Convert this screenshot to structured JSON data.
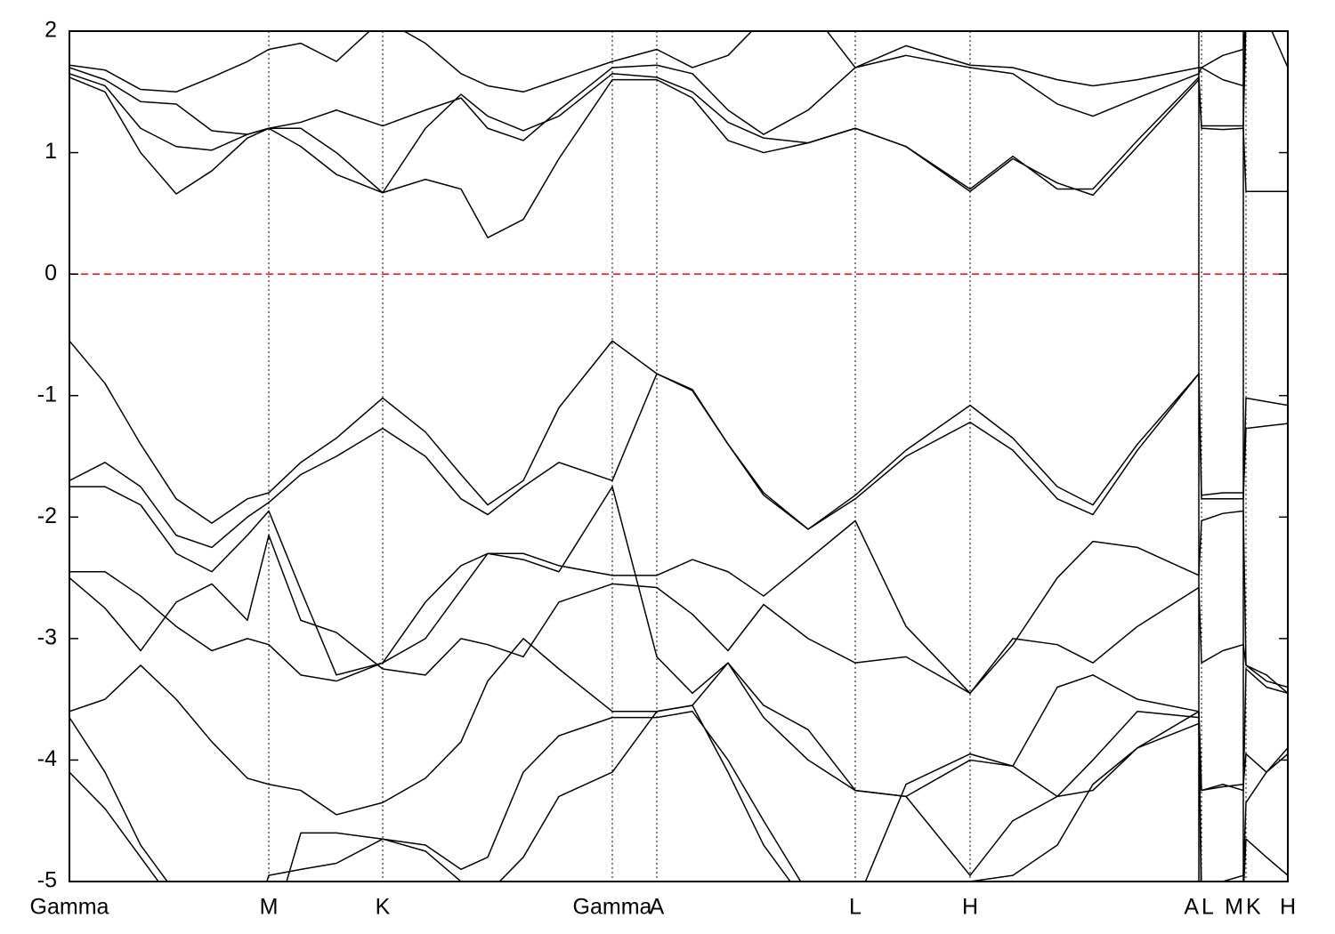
{
  "chart_data": {
    "type": "line",
    "x": [
      0,
      40,
      80,
      120,
      160,
      200,
      224,
      260,
      300,
      352,
      400,
      440,
      470,
      510,
      550,
      610,
      660,
      700,
      740,
      780,
      830,
      883,
      940,
      1012,
      1060,
      1110,
      1150,
      1200,
      1269,
      1272,
      1296,
      1319,
      1322,
      1345,
      1369
    ],
    "xlim": [
      0,
      1369
    ],
    "xticks": [
      {
        "value": 0,
        "label": "Gamma"
      },
      {
        "value": 224,
        "label": "M"
      },
      {
        "value": 352,
        "label": "K"
      },
      {
        "value": 610,
        "label": "Gamma"
      },
      {
        "value": 660,
        "label": "A"
      },
      {
        "value": 883,
        "label": "L"
      },
      {
        "value": 1012,
        "label": "H"
      },
      {
        "value": 1269,
        "label": "A"
      },
      {
        "value": 1272,
        "label": "L"
      },
      {
        "value": 1319,
        "label": "M"
      },
      {
        "value": 1322,
        "label": "K"
      },
      {
        "value": 1369,
        "label": "H"
      }
    ],
    "ylim": [
      -5,
      2
    ],
    "yticks": [
      -5,
      -4,
      -3,
      -2,
      -1,
      0,
      1,
      2
    ],
    "xgrid": true,
    "hline": {
      "value": 0,
      "color": "#ff0000",
      "dashed": true
    },
    "series": [
      {
        "color": "#000000",
        "values": [
          1.62,
          1.5,
          1.0,
          0.66,
          0.85,
          1.12,
          1.2,
          1.05,
          0.82,
          0.67,
          0.78,
          0.7,
          0.3,
          0.45,
          0.95,
          1.6,
          1.6,
          1.45,
          1.1,
          1.0,
          1.08,
          1.2,
          1.05,
          0.68,
          0.95,
          0.75,
          0.65,
          1.05,
          1.6,
          1.2,
          1.19,
          1.2,
          0.68,
          0.68,
          0.68
        ]
      },
      {
        "color": "#000000",
        "values": [
          1.65,
          1.55,
          1.2,
          1.05,
          1.02,
          1.15,
          1.2,
          1.2,
          1.0,
          0.67,
          1.2,
          1.48,
          1.3,
          1.18,
          1.3,
          1.65,
          1.62,
          1.5,
          1.25,
          1.12,
          1.08,
          1.2,
          1.05,
          0.7,
          0.97,
          0.7,
          0.7,
          1.1,
          1.62,
          1.22,
          1.22,
          1.22,
          2.1,
          2.1,
          2.1
        ]
      },
      {
        "color": "#000000",
        "values": [
          1.7,
          1.6,
          1.42,
          1.4,
          1.18,
          1.15,
          1.2,
          1.25,
          1.35,
          1.22,
          1.35,
          1.45,
          1.2,
          1.1,
          1.35,
          1.7,
          1.72,
          1.65,
          1.35,
          1.15,
          1.35,
          1.7,
          1.8,
          1.7,
          1.65,
          1.4,
          1.3,
          1.45,
          1.65,
          1.7,
          1.6,
          1.55,
          2.1,
          2.1,
          2.1
        ]
      },
      {
        "color": "#000000",
        "values": [
          1.72,
          1.68,
          1.52,
          1.5,
          1.62,
          1.75,
          1.85,
          1.9,
          1.75,
          2.1,
          1.9,
          1.65,
          1.55,
          1.5,
          1.6,
          1.75,
          1.85,
          1.7,
          1.8,
          2.1,
          2.2,
          1.7,
          1.88,
          1.72,
          1.7,
          1.6,
          1.55,
          1.6,
          1.7,
          1.7,
          1.8,
          1.85,
          2.1,
          2.1,
          1.7
        ]
      },
      {
        "color": "#000000",
        "values": [
          -0.55,
          -0.9,
          -1.4,
          -1.85,
          -2.05,
          -1.85,
          -1.8,
          -1.55,
          -1.35,
          -1.02,
          -1.3,
          -1.65,
          -1.9,
          -1.7,
          -1.1,
          -0.55,
          -0.82,
          -0.95,
          -1.4,
          -1.8,
          -2.1,
          -1.82,
          -1.45,
          -1.08,
          -1.35,
          -1.75,
          -1.9,
          -1.4,
          -0.82,
          -1.82,
          -1.8,
          -1.8,
          -1.02,
          -1.05,
          -1.08
        ]
      },
      {
        "color": "#000000",
        "values": [
          -1.7,
          -1.55,
          -1.75,
          -2.15,
          -2.25,
          -2.0,
          -1.88,
          -1.65,
          -1.5,
          -1.27,
          -1.5,
          -1.85,
          -1.98,
          -1.75,
          -1.55,
          -1.7,
          -0.82,
          -0.96,
          -1.4,
          -1.82,
          -2.1,
          -1.85,
          -1.5,
          -1.22,
          -1.45,
          -1.85,
          -1.98,
          -1.45,
          -0.82,
          -1.85,
          -1.85,
          -1.85,
          -1.27,
          -1.25,
          -1.23
        ]
      },
      {
        "color": "#000000",
        "values": [
          -1.75,
          -1.75,
          -1.9,
          -2.3,
          -2.45,
          -2.15,
          -1.95,
          -2.6,
          -3.3,
          -3.2,
          -2.7,
          -2.4,
          -2.3,
          -2.3,
          -2.4,
          -2.48,
          -2.48,
          -2.35,
          -2.45,
          -2.65,
          -2.35,
          -2.03,
          -2.9,
          -3.45,
          -3.05,
          -2.5,
          -2.2,
          -2.25,
          -2.48,
          -2.03,
          -1.97,
          -1.95,
          -3.22,
          -3.3,
          -3.45
        ]
      },
      {
        "color": "#000000",
        "values": [
          -2.45,
          -2.45,
          -2.65,
          -2.9,
          -3.1,
          -3.0,
          -3.05,
          -3.3,
          -3.35,
          -3.2,
          -3.0,
          -2.6,
          -2.3,
          -2.35,
          -2.45,
          -1.75,
          -3.15,
          -3.45,
          -3.2,
          -3.65,
          -4.0,
          -4.25,
          -4.3,
          -4.95,
          -4.5,
          -4.3,
          -4.25,
          -3.9,
          -3.6,
          -4.25,
          -4.2,
          -4.25,
          -3.25,
          -3.4,
          -3.45
        ]
      },
      {
        "color": "#000000",
        "values": [
          -2.5,
          -2.75,
          -3.1,
          -2.7,
          -2.55,
          -2.85,
          -2.15,
          -2.85,
          -2.95,
          -3.25,
          -3.3,
          -3.0,
          -3.05,
          -3.15,
          -2.7,
          -2.55,
          -2.58,
          -2.8,
          -3.1,
          -2.72,
          -3.0,
          -3.2,
          -3.15,
          -3.45,
          -3.0,
          -3.05,
          -3.2,
          -2.9,
          -2.58,
          -3.2,
          -3.1,
          -3.05,
          -3.22,
          -3.35,
          -3.4
        ]
      },
      {
        "color": "#000000",
        "values": [
          -3.6,
          -3.5,
          -3.22,
          -3.5,
          -3.85,
          -4.15,
          -4.2,
          -4.25,
          -4.45,
          -4.35,
          -4.15,
          -3.85,
          -3.35,
          -3.0,
          -3.25,
          -3.6,
          -3.6,
          -3.55,
          -3.2,
          -3.55,
          -3.75,
          -4.25,
          -4.3,
          -4.0,
          -4.05,
          -3.4,
          -3.3,
          -3.5,
          -3.6,
          -4.25,
          -4.22,
          -4.2,
          -3.95,
          -4.1,
          -3.9
        ]
      },
      {
        "color": "#000000",
        "values": [
          -3.65,
          -4.1,
          -4.7,
          -5.1,
          -5.3,
          -5.5,
          -4.95,
          -4.9,
          -4.85,
          -4.65,
          -4.7,
          -4.9,
          -4.8,
          -4.1,
          -3.8,
          -3.65,
          -3.65,
          -3.6,
          -4.0,
          -4.5,
          -5.1,
          -5.2,
          -4.2,
          -3.95,
          -4.05,
          -4.3,
          -4.0,
          -3.6,
          -3.65,
          -5.1,
          -5.0,
          -4.95,
          -4.35,
          -4.1,
          -3.95
        ]
      },
      {
        "color": "#000000",
        "values": [
          -4.1,
          -4.4,
          -4.8,
          -5.2,
          -5.4,
          -5.5,
          -5.5,
          -4.6,
          -4.6,
          -4.65,
          -4.75,
          -5.0,
          -5.1,
          -4.8,
          -4.3,
          -4.1,
          -3.6,
          -3.55,
          -4.1,
          -4.7,
          -5.2,
          -5.5,
          -5.2,
          -5.0,
          -4.95,
          -4.7,
          -4.2,
          -3.9,
          -3.7,
          -5.3,
          -5.2,
          -5.1,
          -4.65,
          -4.8,
          -4.95
        ]
      }
    ]
  }
}
